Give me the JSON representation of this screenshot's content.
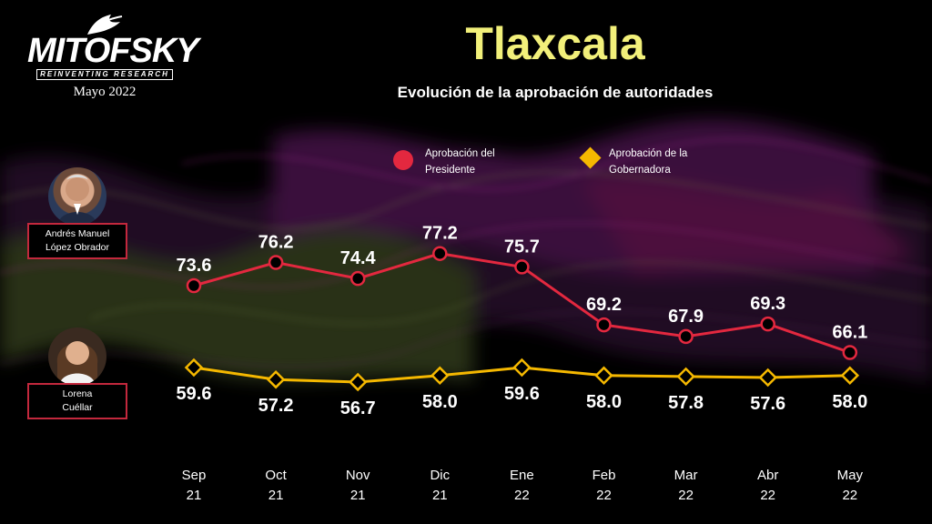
{
  "header": {
    "logo_brand": "MITOFSKY",
    "logo_tagline": "REINVENTING RESEARCH",
    "logo_date": "Mayo 2022",
    "title": "Tlaxcala",
    "subtitle": "Evolución de la aprobación de autoridades"
  },
  "people": [
    {
      "name_line1": "Andrés Manuel",
      "name_line2": "López Obrador"
    },
    {
      "name_line1": "Lorena",
      "name_line2": "Cuéllar"
    }
  ],
  "legend": [
    {
      "label_line1": "Aprobación del",
      "label_line2": "Presidente",
      "color": "#e3283f",
      "marker": "circle"
    },
    {
      "label_line1": "Aprobación de la",
      "label_line2": "Gobernadora",
      "color": "#f5b800",
      "marker": "diamond"
    }
  ],
  "colors": {
    "president": "#e3283f",
    "governor": "#f5b800",
    "title": "#f2f07a"
  },
  "chart_data": {
    "type": "line",
    "categories": [
      [
        "Sep",
        "21"
      ],
      [
        "Oct",
        "21"
      ],
      [
        "Nov",
        "21"
      ],
      [
        "Dic",
        "21"
      ],
      [
        "Ene",
        "22"
      ],
      [
        "Feb",
        "22"
      ],
      [
        "Mar",
        "22"
      ],
      [
        "Abr",
        "22"
      ],
      [
        "May",
        "22"
      ]
    ],
    "series": [
      {
        "name": "Aprobación del Presidente",
        "values": [
          73.6,
          76.2,
          74.4,
          77.2,
          75.7,
          69.2,
          67.9,
          69.3,
          66.1
        ],
        "labels": [
          "73.6",
          "76.2",
          "74.4",
          "77.2",
          "75.7",
          "69.2",
          "67.9",
          "69.3",
          "66.1"
        ],
        "marker": "circle"
      },
      {
        "name": "Aprobación de la Gobernadora",
        "values": [
          59.6,
          57.2,
          56.7,
          58.0,
          59.6,
          58.0,
          57.8,
          57.6,
          58.0
        ],
        "labels": [
          "59.6",
          "57.2",
          "56.7",
          "58.0",
          "59.6",
          "58.0",
          "57.8",
          "57.6",
          "58.0"
        ],
        "marker": "diamond"
      }
    ],
    "title": "Tlaxcala",
    "subtitle": "Evolución de la aprobación de autoridades",
    "legend_position": "top",
    "grid": false
  }
}
